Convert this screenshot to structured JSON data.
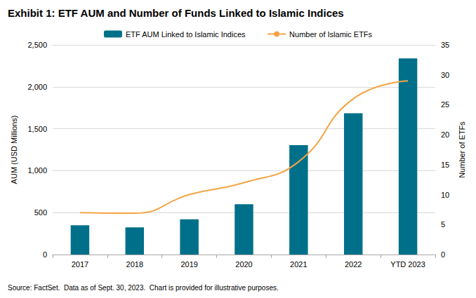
{
  "chart_data": {
    "type": "bar",
    "title": "Exhibit 1: ETF AUM and Number of Funds Linked to Islamic Indices",
    "source": "Source: FactSet.  Data as of Sept. 30, 2023.  Chart is provided for illustrative purposes.",
    "categories": [
      "2017",
      "2018",
      "2019",
      "2020",
      "2021",
      "2022",
      "YTD 2023"
    ],
    "series": [
      {
        "name": "ETF AUM Linked to Islamic Indices",
        "type": "bar",
        "color": "#00708a",
        "values": [
          350,
          325,
          420,
          600,
          1305,
          1685,
          2340
        ]
      },
      {
        "name": "Number of Islamic ETFs",
        "type": "line",
        "color": "#f4a443",
        "axis": "y2",
        "values": [
          7,
          6.9,
          10,
          12,
          15.5,
          26,
          29
        ]
      }
    ],
    "ylabel": "AUM (USD Millions)",
    "y2label": "Number of ETFs",
    "ylim": [
      0,
      2500
    ],
    "yticks": [
      0,
      500,
      {
        "value": 1000,
        "label": "1,000"
      },
      {
        "value": 1500,
        "label": "1,500"
      },
      {
        "value": 2000,
        "label": "2,000"
      },
      {
        "value": 2500,
        "label": "2,500"
      }
    ],
    "y2lim": [
      0,
      35
    ],
    "y2ticks": [
      0,
      5,
      10,
      15,
      20,
      25,
      30,
      35
    ],
    "grid": true,
    "legend": "top"
  }
}
